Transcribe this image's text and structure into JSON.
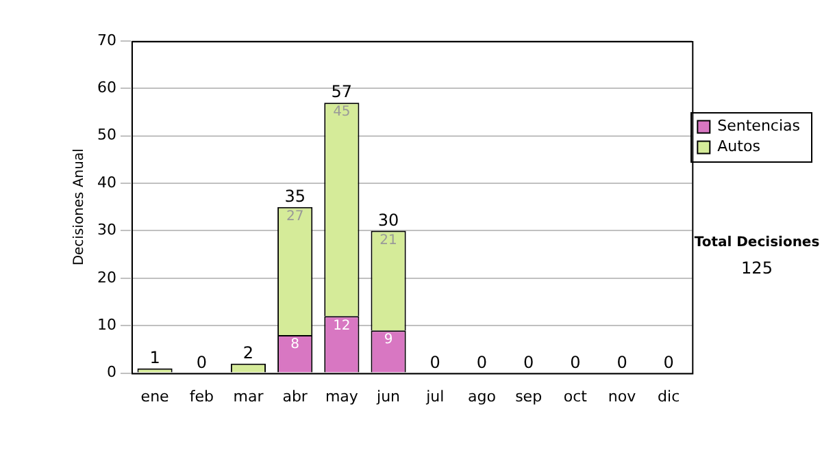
{
  "chart_data": {
    "type": "bar",
    "stacked": true,
    "ylabel": "Decisiones Anual",
    "categories": [
      "ene",
      "feb",
      "mar",
      "abr",
      "may",
      "jun",
      "jul",
      "ago",
      "sep",
      "oct",
      "nov",
      "dic"
    ],
    "series": [
      {
        "name": "Sentencias",
        "color": "#d877c2",
        "values": [
          0,
          0,
          0,
          8,
          12,
          9,
          0,
          0,
          0,
          0,
          0,
          0
        ],
        "value_labels": [
          null,
          null,
          null,
          "8",
          "12",
          "9",
          null,
          null,
          null,
          null,
          null,
          null
        ]
      },
      {
        "name": "Autos",
        "color": "#d5eb99",
        "values": [
          1,
          0,
          2,
          27,
          45,
          21,
          0,
          0,
          0,
          0,
          0,
          0
        ],
        "value_labels": [
          null,
          null,
          null,
          "27",
          "45",
          "21",
          null,
          null,
          null,
          null,
          null,
          null
        ]
      }
    ],
    "totals": [
      "1",
      "0",
      "2",
      "35",
      "57",
      "30",
      "0",
      "0",
      "0",
      "0",
      "0",
      "0"
    ],
    "ylim": [
      0,
      70
    ],
    "yticks": [
      0,
      10,
      20,
      30,
      40,
      50,
      60,
      70
    ],
    "grid": "y",
    "legend": "right",
    "annotations": [
      "Total Decisiones",
      "125"
    ]
  }
}
